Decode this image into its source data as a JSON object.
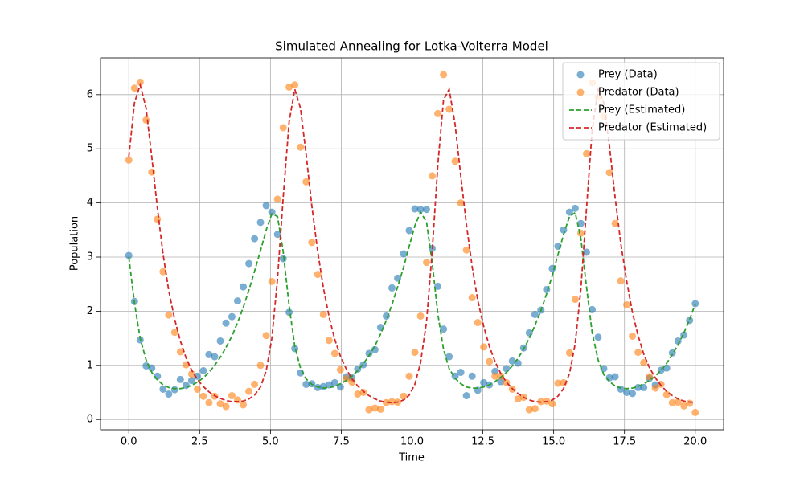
{
  "chart_data": {
    "type": "line",
    "title": "Simulated Annealing for Lotka-Volterra Model",
    "x_label": "Time",
    "y_label": "Population",
    "x": [
      0,
      0.2,
      0.4,
      0.61,
      0.81,
      1.01,
      1.21,
      1.41,
      1.62,
      1.82,
      2.02,
      2.22,
      2.42,
      2.63,
      2.83,
      3.03,
      3.23,
      3.43,
      3.64,
      3.84,
      4.04,
      4.24,
      4.44,
      4.65,
      4.85,
      5.05,
      5.25,
      5.45,
      5.66,
      5.86,
      6.06,
      6.26,
      6.46,
      6.67,
      6.87,
      7.07,
      7.27,
      7.47,
      7.68,
      7.88,
      8.08,
      8.28,
      8.48,
      8.69,
      8.89,
      9.09,
      9.29,
      9.49,
      9.7,
      9.9,
      10.1,
      10.3,
      10.51,
      10.71,
      10.91,
      11.11,
      11.31,
      11.52,
      11.72,
      11.92,
      12.12,
      12.32,
      12.53,
      12.73,
      12.93,
      13.13,
      13.33,
      13.54,
      13.74,
      13.94,
      14.14,
      14.34,
      14.55,
      14.75,
      14.95,
      15.15,
      15.35,
      15.56,
      15.76,
      15.96,
      16.16,
      16.36,
      16.57,
      16.77,
      16.97,
      17.17,
      17.37,
      17.58,
      17.78,
      17.98,
      18.18,
      18.38,
      18.59,
      18.79,
      18.99,
      19.19,
      19.39,
      19.6,
      19.8,
      20
    ],
    "series": [
      {
        "name": "Prey (Data)",
        "kind": "scatter",
        "color": "#1f77b4",
        "values": [
          3.03,
          2.18,
          1.47,
          0.99,
          0.95,
          0.8,
          0.56,
          0.47,
          0.55,
          0.74,
          0.63,
          0.72,
          0.8,
          0.9,
          1.2,
          1.16,
          1.45,
          1.78,
          1.9,
          2.19,
          2.45,
          2.88,
          3.34,
          3.64,
          3.95,
          3.83,
          3.42,
          2.97,
          1.98,
          1.31,
          0.86,
          0.65,
          0.66,
          0.59,
          0.61,
          0.64,
          0.68,
          0.6,
          0.79,
          0.77,
          0.93,
          1.01,
          1.22,
          1.29,
          1.7,
          1.91,
          2.43,
          2.61,
          3.06,
          3.49,
          3.89,
          3.88,
          3.88,
          3.16,
          2.46,
          1.67,
          1.16,
          0.8,
          0.87,
          0.44,
          0.8,
          0.54,
          0.68,
          0.64,
          0.89,
          0.7,
          0.94,
          1.08,
          1.04,
          1.32,
          1.6,
          1.94,
          2.02,
          2.4,
          2.79,
          3.2,
          3.5,
          3.83,
          3.9,
          3.62,
          3.09,
          2.03,
          1.52,
          0.94,
          0.77,
          0.79,
          0.56,
          0.5,
          0.48,
          0.59,
          0.59,
          0.76,
          0.64,
          0.91,
          0.95,
          1.23,
          1.45,
          1.56,
          1.83,
          2.14
        ]
      },
      {
        "name": "Predator (Data)",
        "kind": "scatter",
        "color": "#ff7f0e",
        "values": [
          4.79,
          6.12,
          6.23,
          5.53,
          4.57,
          3.7,
          2.73,
          1.93,
          1.61,
          1.25,
          1.01,
          0.84,
          0.56,
          0.43,
          0.31,
          0.43,
          0.29,
          0.24,
          0.44,
          0.36,
          0.27,
          0.52,
          0.65,
          1.0,
          1.55,
          2.55,
          4.07,
          5.39,
          6.14,
          6.18,
          5.03,
          4.39,
          3.27,
          2.68,
          1.94,
          1.46,
          1.22,
          0.92,
          0.75,
          0.69,
          0.47,
          0.5,
          0.18,
          0.21,
          0.19,
          0.31,
          0.33,
          0.32,
          0.43,
          0.8,
          1.24,
          1.91,
          2.9,
          4.5,
          5.65,
          6.37,
          5.73,
          4.77,
          4.0,
          3.13,
          2.25,
          1.79,
          1.34,
          1.07,
          0.8,
          0.8,
          0.68,
          0.56,
          0.38,
          0.41,
          0.18,
          0.2,
          0.33,
          0.34,
          0.29,
          0.67,
          0.68,
          1.23,
          2.22,
          3.44,
          4.91,
          6.22,
          5.95,
          5.6,
          4.56,
          3.62,
          2.56,
          2.12,
          1.54,
          1.24,
          1.05,
          0.79,
          0.58,
          0.65,
          0.46,
          0.31,
          0.32,
          0.25,
          0.3,
          0.13
        ]
      },
      {
        "name": "Prey (Estimated)",
        "kind": "dashed",
        "color": "#2ca02c",
        "values": [
          3.0,
          2.15,
          1.5,
          1.1,
          0.87,
          0.73,
          0.64,
          0.59,
          0.57,
          0.57,
          0.59,
          0.63,
          0.69,
          0.77,
          0.87,
          1.0,
          1.15,
          1.33,
          1.54,
          1.79,
          2.07,
          2.39,
          2.74,
          3.12,
          3.5,
          3.8,
          3.75,
          3.1,
          2.1,
          1.35,
          0.95,
          0.75,
          0.65,
          0.6,
          0.58,
          0.59,
          0.61,
          0.66,
          0.72,
          0.8,
          0.9,
          1.03,
          1.18,
          1.36,
          1.58,
          1.83,
          2.12,
          2.45,
          2.81,
          3.2,
          3.58,
          3.83,
          3.65,
          2.9,
          1.95,
          1.3,
          0.94,
          0.76,
          0.66,
          0.6,
          0.58,
          0.58,
          0.6,
          0.64,
          0.7,
          0.78,
          0.87,
          0.99,
          1.13,
          1.3,
          1.5,
          1.74,
          2.01,
          2.32,
          2.66,
          3.04,
          3.42,
          3.75,
          3.82,
          3.35,
          2.45,
          1.6,
          1.1,
          0.83,
          0.7,
          0.62,
          0.58,
          0.57,
          0.58,
          0.61,
          0.66,
          0.72,
          0.8,
          0.91,
          1.04,
          1.2,
          1.38,
          1.6,
          1.85,
          2.13
        ]
      },
      {
        "name": "Predator (Estimated)",
        "kind": "dashed",
        "color": "#d62728",
        "values": [
          4.85,
          5.85,
          6.18,
          5.75,
          4.85,
          3.9,
          3.05,
          2.38,
          1.85,
          1.45,
          1.14,
          0.91,
          0.74,
          0.61,
          0.51,
          0.44,
          0.39,
          0.35,
          0.33,
          0.33,
          0.34,
          0.38,
          0.45,
          0.6,
          0.9,
          1.5,
          2.6,
          4.1,
          5.5,
          6.1,
          5.75,
          4.9,
          3.95,
          3.1,
          2.43,
          1.9,
          1.48,
          1.17,
          0.93,
          0.75,
          0.62,
          0.52,
          0.44,
          0.38,
          0.34,
          0.32,
          0.31,
          0.32,
          0.36,
          0.45,
          0.65,
          1.05,
          1.8,
          3.1,
          4.7,
          5.9,
          6.1,
          5.45,
          4.5,
          3.6,
          2.83,
          2.2,
          1.72,
          1.35,
          1.07,
          0.85,
          0.69,
          0.57,
          0.48,
          0.41,
          0.36,
          0.33,
          0.32,
          0.33,
          0.36,
          0.43,
          0.57,
          0.85,
          1.4,
          2.4,
          3.9,
          5.35,
          6.1,
          5.85,
          5.05,
          4.1,
          3.25,
          2.55,
          1.98,
          1.55,
          1.21,
          0.96,
          0.77,
          0.63,
          0.52,
          0.44,
          0.38,
          0.34,
          0.32,
          0.32
        ]
      }
    ],
    "xlim": [
      -1,
      21
    ],
    "ylim": [
      -0.19,
      6.68
    ],
    "xticks": [
      {
        "value": 0,
        "label": "0.0"
      },
      2.5,
      {
        "value": 5,
        "label": "5.0"
      },
      7.5,
      {
        "value": 10,
        "label": "10.0"
      },
      12.5,
      {
        "value": 15,
        "label": "15.0"
      },
      17.5,
      {
        "value": 20,
        "label": "20.0"
      }
    ],
    "yticks": [
      0,
      1,
      2,
      3,
      4,
      5,
      6
    ],
    "grid": true,
    "legend": "upper right"
  }
}
